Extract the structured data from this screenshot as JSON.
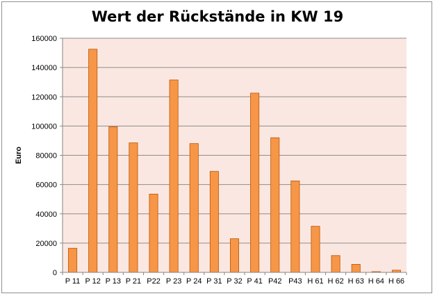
{
  "chart_data": {
    "type": "bar",
    "title": "Wert der Rückstände in KW 19",
    "ylabel": "Euro",
    "xlabel": "",
    "ylim": [
      0,
      160000
    ],
    "yticks": [
      "0",
      "20000",
      "40000",
      "60000",
      "80000",
      "100000",
      "120000",
      "140000",
      "160000"
    ],
    "grid": true,
    "categories": [
      "P 11",
      "P 12",
      "P 13",
      "P 21",
      "P22",
      "P 23",
      "P 24",
      "P 31",
      "P 32",
      "P 41",
      "P42",
      "P43",
      "H 61",
      "H 62",
      "H 63",
      "H 64",
      "H 66"
    ],
    "values": [
      16500,
      152500,
      99500,
      88500,
      53500,
      131500,
      88000,
      69000,
      23000,
      122500,
      92000,
      62500,
      31500,
      11500,
      5500,
      500,
      1500
    ],
    "colors": {
      "bar_fill": "#f79646",
      "bar_stroke": "#b65708",
      "plot_background": "#fbe7e1",
      "gridline": "#8c8c8c"
    }
  }
}
